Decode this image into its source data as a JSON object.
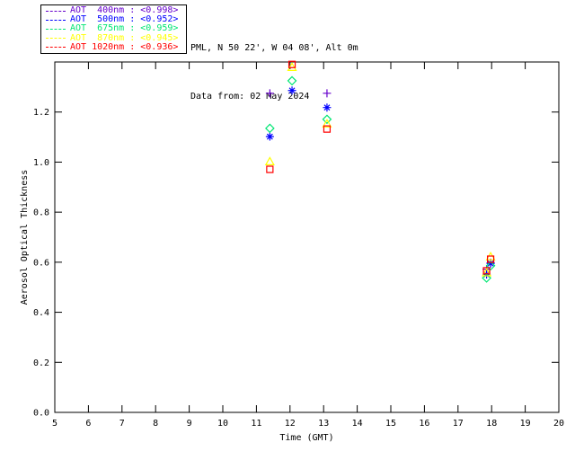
{
  "header": {
    "station": "PML, N 50 22', W 04 08', Alt 0m",
    "date": "Data from: 02 May 2024"
  },
  "legend": {
    "items": [
      {
        "label": "AOT  400nm : <0.998>",
        "wavelength": "400nm",
        "mean": "<0.998>",
        "color": "#6600CC",
        "line_style": "dashed"
      },
      {
        "label": "AOT  500nm : <0.952>",
        "wavelength": "500nm",
        "mean": "<0.952>",
        "color": "#0000FF",
        "line_style": "dashed"
      },
      {
        "label": "AOT  675nm : <0.959>",
        "wavelength": "675nm",
        "mean": "<0.959>",
        "color": "#00E673",
        "line_style": "dashed"
      },
      {
        "label": "AOT  870nm : <0.945>",
        "wavelength": "870nm",
        "mean": "<0.945>",
        "color": "#FFFF00",
        "line_style": "dashed"
      },
      {
        "label": "AOT 1020nm : <0.936>",
        "wavelength": "1020nm",
        "mean": "<0.936>",
        "color": "#FF0000",
        "line_style": "dashed"
      }
    ]
  },
  "chart_data": {
    "type": "scatter",
    "title": "",
    "xlabel": "Time (GMT)",
    "ylabel": "Aerosol Optical Thickness",
    "xlim": [
      5,
      20
    ],
    "ylim": [
      0,
      1.4
    ],
    "xticks": [
      5,
      6,
      7,
      8,
      9,
      10,
      11,
      12,
      13,
      14,
      15,
      16,
      17,
      18,
      19,
      20
    ],
    "xtick_labels": [
      "5",
      "6",
      "7",
      "8",
      "9",
      "10",
      "11",
      "12",
      "13",
      "14",
      "15",
      "16",
      "17",
      "18",
      "19",
      "20"
    ],
    "yticks": [
      0.0,
      0.2,
      0.4,
      0.6,
      0.8,
      1.0,
      1.2,
      1.4
    ],
    "ytick_labels": [
      "0.0",
      "0.2",
      "0.4",
      "0.6",
      "0.8",
      "1.0",
      "1.2",
      ""
    ],
    "grid": false,
    "legend_position": "outside-top-left",
    "series": [
      {
        "name": "AOT 400nm",
        "marker": "plus",
        "color": "#6600CC",
        "points": [
          [
            11.4,
            1.275
          ],
          [
            13.1,
            1.275
          ],
          [
            17.85,
            0.572
          ],
          [
            17.97,
            0.598
          ]
        ]
      },
      {
        "name": "AOT 500nm",
        "marker": "asterisk",
        "color": "#0000FF",
        "points": [
          [
            11.4,
            1.102
          ],
          [
            12.06,
            1.286
          ],
          [
            13.1,
            1.218
          ],
          [
            17.85,
            0.551
          ],
          [
            17.97,
            0.595
          ]
        ]
      },
      {
        "name": "AOT 675nm",
        "marker": "diamond",
        "color": "#00E673",
        "points": [
          [
            11.4,
            1.135
          ],
          [
            12.06,
            1.325
          ],
          [
            13.1,
            1.171
          ],
          [
            17.85,
            0.537
          ],
          [
            17.97,
            0.586
          ]
        ]
      },
      {
        "name": "AOT 870nm",
        "marker": "triangle",
        "color": "#FFFF00",
        "points": [
          [
            11.4,
            1.002
          ],
          [
            12.06,
            1.379
          ],
          [
            13.1,
            1.153
          ],
          [
            17.85,
            0.558
          ],
          [
            17.97,
            0.622
          ]
        ]
      },
      {
        "name": "AOT 1020nm",
        "marker": "square",
        "color": "#FF0000",
        "points": [
          [
            11.4,
            0.971
          ],
          [
            12.06,
            1.39
          ],
          [
            13.1,
            1.132
          ],
          [
            17.85,
            0.566
          ],
          [
            17.97,
            0.612
          ]
        ]
      }
    ]
  }
}
